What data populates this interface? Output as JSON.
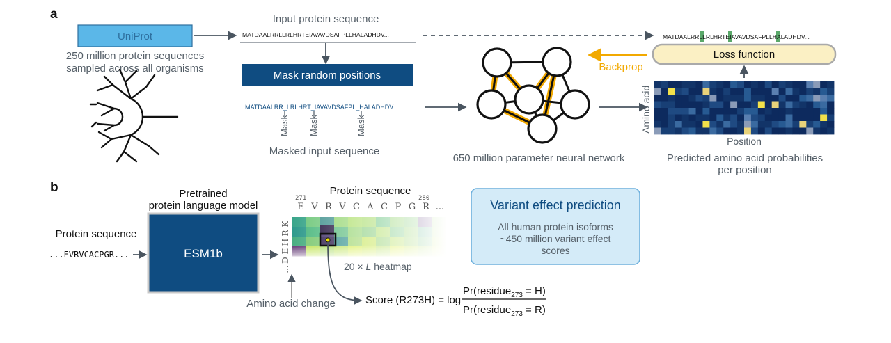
{
  "panel_a": {
    "label": "a",
    "uniprot": {
      "label": "UniProt",
      "desc_line1": "250 million protein sequences",
      "desc_line2": "sampled across all organisms"
    },
    "input_title": "Input protein sequence",
    "input_sequence": "MATDAALRRLLRLHRTEIAVAVDSAFPLLHALADHDV...",
    "mask_button": "Mask random positions",
    "masked_sequence": "MATDAALRR_LRLHRT_IAVAVDSAFPL_HALADHDV...",
    "mask_label": "Mask",
    "masked_title": "Masked input sequence",
    "network_caption": "650 million parameter neural network",
    "output_sequence": "MATDAALRRLLRLHRTEIAVAVDSAFPLLHALADHDV...",
    "loss_label": "Loss function",
    "backprop_label": "Backprop",
    "y_axis_label": "Amino acid",
    "x_axis_label": "Position",
    "probs_line1": "Predicted amino acid probabilities",
    "probs_line2": "per position"
  },
  "panel_b": {
    "label": "b",
    "input_label": "Protein sequence",
    "input_sequence": "...EVRVCACPGR...",
    "model_title_line1": "Pretrained",
    "model_title_line2": "protein language model",
    "model_name": "ESM1b",
    "heatmap_title": "Protein sequence",
    "pos_start": "271",
    "pos_end": "280",
    "residues": [
      "E",
      "V",
      "R",
      "V",
      "C",
      "A",
      "C",
      "P",
      "G",
      "R",
      "..."
    ],
    "amino_acids": [
      "K",
      "R",
      "H",
      "E",
      "D",
      "..."
    ],
    "heatmap_caption_prefix": "20 × ",
    "heatmap_caption_var": "L",
    "heatmap_caption_suffix": " heatmap",
    "aa_change_label": "Amino acid change",
    "score_lhs": "Score (R273H) = log",
    "numerator_a": "Pr(residue",
    "numerator_sub": "273",
    "numerator_b": " = H)",
    "denominator_a": "Pr(residue",
    "denominator_sub": "273",
    "denominator_b": " = R)",
    "vep_title": "Variant effect prediction",
    "vep_line1": "All human protein isoforms",
    "vep_line2": "~450 million variant effect",
    "vep_line3": "scores"
  },
  "colors": {
    "navy": "#0f4c81",
    "light_blue": "#5bb7e8",
    "orange": "#f2a900",
    "loss_fill": "#fbf0c4",
    "vep_fill": "#d4ebf8",
    "arrow": "#4a5560",
    "text_gray": "#555f68"
  },
  "icons": {
    "tree": "phylogenetic-tree-icon",
    "network": "neural-network-icon"
  }
}
